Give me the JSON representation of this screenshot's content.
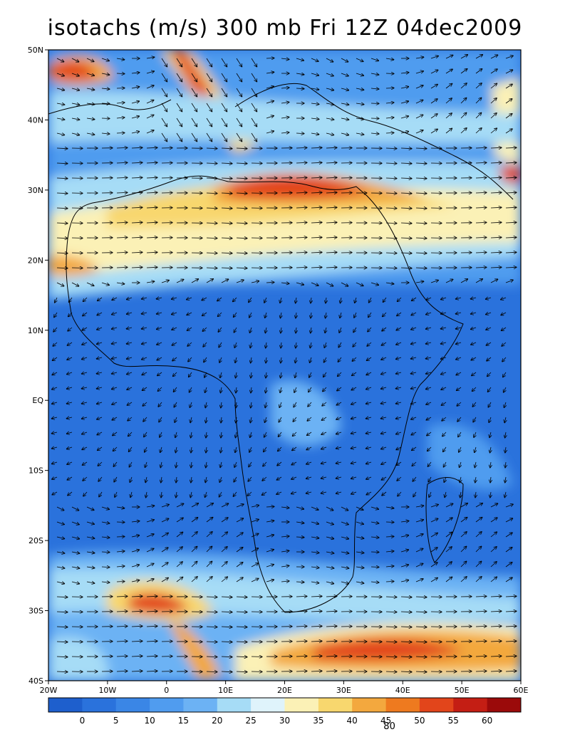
{
  "title": "isotachs (m/s) 300 mb Fri 12Z 04dec2009",
  "map": {
    "lat_labels": [
      "50N",
      "40N",
      "30N",
      "20N",
      "10N",
      "EQ",
      "10S",
      "20S",
      "30S",
      "40S"
    ],
    "lon_labels": [
      "20W",
      "10W",
      "0",
      "10E",
      "20E",
      "30E",
      "40E",
      "50E",
      "60E"
    ],
    "lat_range": [
      -40,
      50
    ],
    "lon_range": [
      -20,
      60
    ]
  },
  "colorbar": {
    "labels": [
      "0",
      "5",
      "10",
      "15",
      "20",
      "25",
      "30",
      "35",
      "40",
      "45",
      "50",
      "55",
      "60"
    ],
    "overlap_label": "80",
    "colors": [
      "#1e5fcd",
      "#2a72dc",
      "#3a86e6",
      "#509cef",
      "#6cb2f4",
      "#a6dcf6",
      "#dff3fb",
      "#fbf1b6",
      "#f8d76e",
      "#f3a83e",
      "#ee7a1f",
      "#e2451b",
      "#c41e14",
      "#9b0a0a"
    ]
  }
}
